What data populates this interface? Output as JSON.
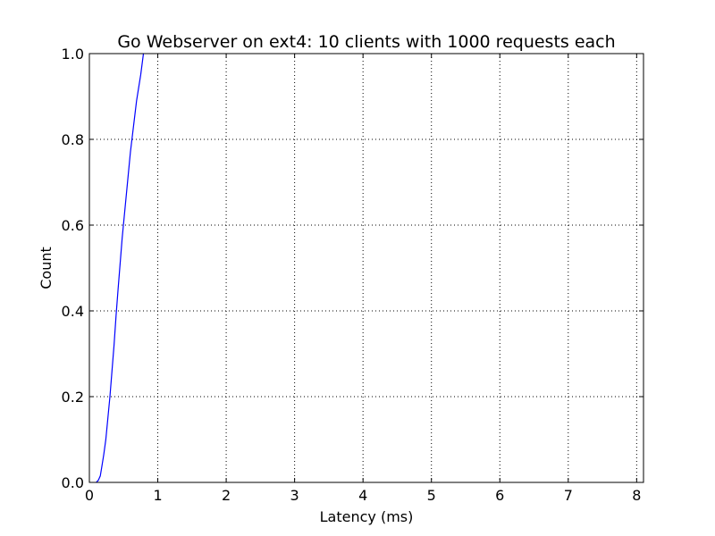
{
  "chart_data": {
    "type": "line",
    "title": "Go Webserver on ext4: 10 clients with 1000 requests each",
    "xlabel": "Latency (ms)",
    "ylabel": "Count",
    "xlim": [
      0,
      8.1
    ],
    "ylim": [
      0,
      1.0
    ],
    "xticks": [
      0,
      1,
      2,
      3,
      4,
      5,
      6,
      7,
      8
    ],
    "yticks": [
      0.0,
      0.2,
      0.4,
      0.6,
      0.8,
      1.0
    ],
    "xtick_labels": [
      "0",
      "1",
      "2",
      "3",
      "4",
      "5",
      "6",
      "7",
      "8"
    ],
    "ytick_labels": [
      "0.0",
      "0.2",
      "0.4",
      "0.6",
      "0.8",
      "1.0"
    ],
    "grid": true,
    "series": [
      {
        "color": "#0000ff",
        "x": [
          0.1,
          0.13,
          0.16,
          0.18,
          0.21,
          0.24,
          0.27,
          0.3,
          0.33,
          0.36,
          0.39,
          0.42,
          0.45,
          0.48,
          0.51,
          0.54,
          0.57,
          0.6,
          0.63,
          0.66,
          0.69,
          0.72,
          0.75,
          0.79
        ],
        "y": [
          0.0,
          0.005,
          0.015,
          0.035,
          0.065,
          0.1,
          0.15,
          0.2,
          0.26,
          0.32,
          0.39,
          0.45,
          0.51,
          0.57,
          0.62,
          0.67,
          0.72,
          0.77,
          0.81,
          0.85,
          0.89,
          0.92,
          0.95,
          1.0
        ]
      }
    ]
  }
}
